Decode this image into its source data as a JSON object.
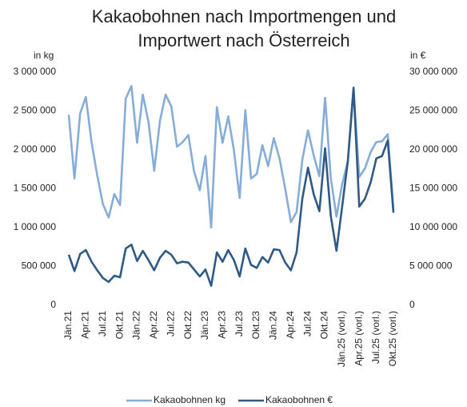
{
  "chart_data": {
    "type": "line",
    "title": "Kakaobohnen nach Importmengen und Importwert nach Österreich",
    "y_label": "in kg",
    "y2_label": "in €",
    "categories": [
      "Jän.21",
      null,
      null,
      "Apr.21",
      null,
      null,
      "Jul.21",
      null,
      null,
      "Okt.21",
      null,
      null,
      "Jän.22",
      null,
      null,
      "Apr.22",
      null,
      null,
      "Jul.22",
      null,
      null,
      "Okt.22",
      null,
      null,
      "Jän.23",
      null,
      null,
      "Apr.23",
      null,
      null,
      "Jul.23",
      null,
      null,
      "Okt.23",
      null,
      null,
      "Jän.24",
      null,
      null,
      "Apr.24",
      null,
      null,
      "Jul.24",
      null,
      null,
      "Okt.24",
      null,
      null,
      "Jän.25 (vorl.)",
      null,
      null,
      "Apr.25 (vorl.)",
      null,
      null,
      "Jul.25 (vorl.)",
      null,
      null,
      "Okt.25 (vorl.)"
    ],
    "series": [
      {
        "name": "Kakaobohnen kg",
        "color": "#86acd8",
        "values": [
          2450000,
          1630000,
          2470000,
          2680000,
          2100000,
          1670000,
          1300000,
          1130000,
          1430000,
          1290000,
          2660000,
          2820000,
          2090000,
          2710000,
          2360000,
          1730000,
          2370000,
          2710000,
          2560000,
          2040000,
          2100000,
          2190000,
          1720000,
          1480000,
          1920000,
          1000000,
          2550000,
          2090000,
          2430000,
          1990000,
          1380000,
          2510000,
          1630000,
          1690000,
          2060000,
          1790000,
          2150000,
          1890000,
          1500000,
          1070000,
          1200000,
          1870000,
          2250000,
          1930000,
          1660000,
          2670000,
          1640000,
          1140000,
          1560000,
          1850000,
          2780000,
          1650000,
          1760000,
          1970000,
          2100000,
          2110000,
          2200000,
          1230000
        ]
      },
      {
        "name": "Kakaobohnen €",
        "color": "#2f5a86",
        "axis": "y2",
        "values": [
          6500000,
          4400000,
          6600000,
          7100000,
          5600000,
          4500000,
          3500000,
          3000000,
          3800000,
          3600000,
          7300000,
          7800000,
          5700000,
          7000000,
          5800000,
          4500000,
          6100000,
          7000000,
          6500000,
          5400000,
          5600000,
          5500000,
          4600000,
          3700000,
          4600000,
          2500000,
          6800000,
          5600000,
          7100000,
          5800000,
          3700000,
          7300000,
          5200000,
          4800000,
          6200000,
          5500000,
          7200000,
          7100000,
          5500000,
          4500000,
          6800000,
          13700000,
          17700000,
          14300000,
          12100000,
          20200000,
          11500000,
          7000000,
          12700000,
          18600000,
          28000000,
          12700000,
          13700000,
          15800000,
          18900000,
          19200000,
          21200000,
          11900000
        ]
      }
    ],
    "ylim": [
      0,
      3000000
    ],
    "yticks": [
      0,
      {
        "value": 500000,
        "label": "500 000"
      },
      {
        "value": 1000000,
        "label": "1 000 000"
      },
      {
        "value": 1500000,
        "label": "1 500 000"
      },
      {
        "value": 2000000,
        "label": "2 000 000"
      },
      {
        "value": 2500000,
        "label": "2 500 000"
      },
      {
        "value": 3000000,
        "label": "3 000 000"
      }
    ],
    "y2lim": [
      0,
      30000000
    ],
    "y2ticks": [
      0,
      {
        "value": 5000000,
        "label": "5 000 000"
      },
      {
        "value": 10000000,
        "label": "10 000 000"
      },
      {
        "value": 15000000,
        "label": "15 000 000"
      },
      {
        "value": 20000000,
        "label": "20 000 000"
      },
      {
        "value": 25000000,
        "label": "25 000 000"
      },
      {
        "value": 30000000,
        "label": "30 000 000"
      }
    ],
    "grid": false,
    "legend": "bottom"
  }
}
